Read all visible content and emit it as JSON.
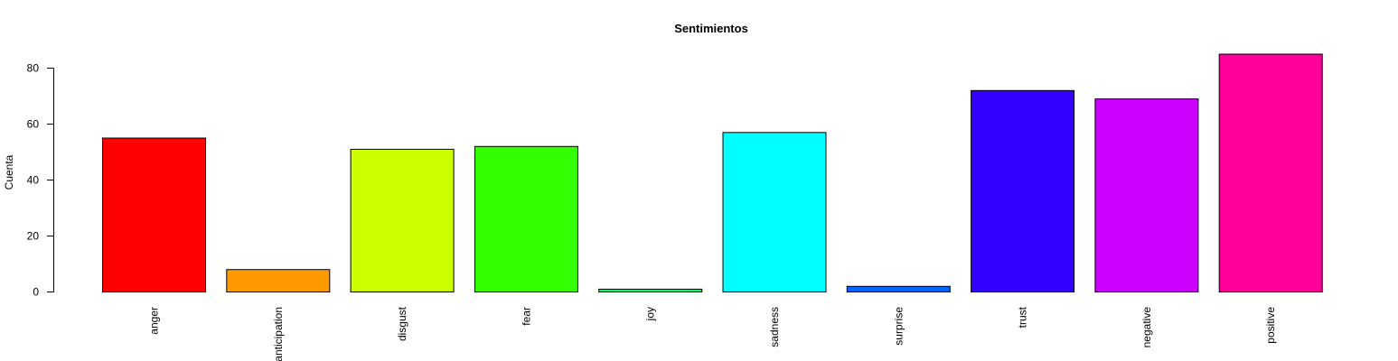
{
  "chart_data": {
    "type": "bar",
    "title": "Sentimientos",
    "xlabel": "",
    "ylabel": "Cuenta",
    "ylim": [
      0,
      85
    ],
    "yticks": [
      0,
      20,
      40,
      60,
      80
    ],
    "categories": [
      "anger",
      "anticipation",
      "disgust",
      "fear",
      "joy",
      "sadness",
      "surprise",
      "trust",
      "negative",
      "positive"
    ],
    "values": [
      55,
      8,
      51,
      52,
      1,
      57,
      2,
      72,
      69,
      85
    ],
    "colors": [
      "#FF0000",
      "#FF9900",
      "#CCFF00",
      "#33FF00",
      "#00FF66",
      "#00FFFF",
      "#0066FF",
      "#3300FF",
      "#CC00FF",
      "#FF0099"
    ],
    "grid": false,
    "legend": "none"
  }
}
